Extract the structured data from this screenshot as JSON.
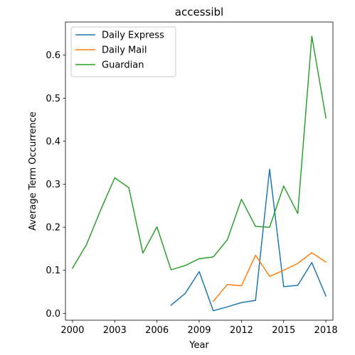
{
  "chart_data": {
    "type": "line",
    "title": "accessibl",
    "xlabel": "Year",
    "ylabel": "Average Term Occurrence",
    "xlim": [
      1999.5,
      2018.5
    ],
    "ylim": [
      -0.016,
      0.677
    ],
    "xticks": [
      2000,
      2003,
      2006,
      2009,
      2012,
      2015,
      2018
    ],
    "yticks": [
      0.0,
      0.1,
      0.2,
      0.3,
      0.4,
      0.5,
      0.6
    ],
    "xtick_labels": [
      "2000",
      "2003",
      "2006",
      "2009",
      "2012",
      "2015",
      "2018"
    ],
    "ytick_labels": [
      "0.0",
      "0.1",
      "0.2",
      "0.3",
      "0.4",
      "0.5",
      "0.6"
    ],
    "grid": false,
    "legend_position": "top-left",
    "series": [
      {
        "name": "Daily Express",
        "color": "#1f77b4",
        "x": [
          2007,
          2008,
          2009,
          2010,
          2011,
          2012,
          2013,
          2014,
          2015,
          2016,
          2017,
          2018
        ],
        "y": [
          0.019,
          0.046,
          0.097,
          0.006,
          0.015,
          0.025,
          0.03,
          0.335,
          0.062,
          0.065,
          0.118,
          0.04
        ]
      },
      {
        "name": "Daily Mail",
        "color": "#ff7f0e",
        "x": [
          2010,
          2011,
          2012,
          2013,
          2014,
          2015,
          2016,
          2017,
          2018
        ],
        "y": [
          0.028,
          0.067,
          0.064,
          0.135,
          0.086,
          0.1,
          0.116,
          0.141,
          0.119
        ]
      },
      {
        "name": "Guardian",
        "color": "#2ca02c",
        "x": [
          2000,
          2001,
          2002,
          2003,
          2004,
          2005,
          2006,
          2007,
          2008,
          2009,
          2010,
          2011,
          2012,
          2013,
          2014,
          2015,
          2016,
          2017,
          2018
        ],
        "y": [
          0.105,
          0.16,
          0.24,
          0.315,
          0.292,
          0.14,
          0.201,
          0.101,
          0.111,
          0.127,
          0.131,
          0.171,
          0.265,
          0.202,
          0.2,
          0.296,
          0.232,
          0.644,
          0.454
        ]
      }
    ]
  }
}
